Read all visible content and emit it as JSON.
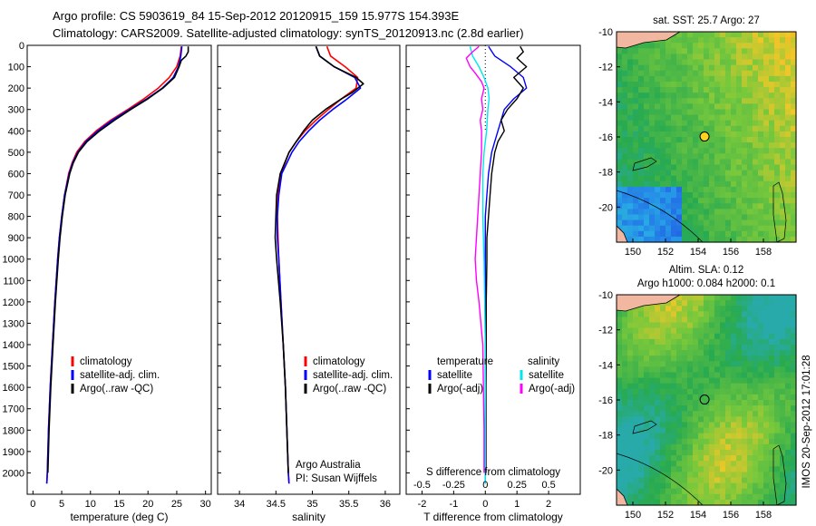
{
  "header": {
    "line1": "Argo profile: CS 5903619_84 15-Sep-2012 20120915_159 15.977S 154.393E",
    "line2": "Climatology: CARS2009. Satellite-adjusted climatology: synTS_20120913.nc (2.8d earlier)"
  },
  "colors": {
    "climatology": "#ff0000",
    "satellite": "#0000ff",
    "argo": "#000000",
    "sal_satellite": "#00e5ee",
    "sal_argo": "#ff00ff"
  },
  "chart_data": [
    {
      "id": "temperature",
      "type": "line",
      "xlabel": "temperature (deg C)",
      "ylabel": "",
      "xlim": [
        -1,
        31
      ],
      "ylim": [
        2100,
        0
      ],
      "xticks": [
        "0",
        "5",
        "10",
        "15",
        "20",
        "25",
        "30"
      ],
      "yticks": [
        "0",
        "100",
        "200",
        "300",
        "400",
        "500",
        "600",
        "700",
        "800",
        "900",
        "1000",
        "1100",
        "1200",
        "1300",
        "1400",
        "1500",
        "1600",
        "1700",
        "1800",
        "1900",
        "2000"
      ],
      "legend": {
        "position": "lower-center",
        "entries": [
          "climatology",
          "satellite-adj. clim.",
          "Argo(..raw -QC)"
        ]
      },
      "series": [
        {
          "name": "climatology",
          "depth": [
            5,
            50,
            100,
            150,
            200,
            250,
            300,
            350,
            400,
            450,
            500,
            550,
            600,
            700,
            800,
            900,
            1000,
            1200,
            1400,
            1600,
            1800,
            2000,
            2050
          ],
          "values": [
            25.8,
            25.6,
            25.0,
            23.7,
            21.8,
            19.3,
            16.5,
            13.5,
            11.0,
            9.0,
            7.6,
            6.8,
            6.2,
            5.5,
            5.0,
            4.6,
            4.3,
            3.8,
            3.4,
            3.0,
            2.7,
            2.5,
            2.4
          ]
        },
        {
          "name": "satellite-adj. clim.",
          "depth": [
            5,
            50,
            100,
            150,
            200,
            250,
            300,
            350,
            400,
            450,
            500,
            550,
            600,
            700,
            800,
            900,
            1000,
            1200,
            1400,
            1600,
            1800,
            2000,
            2050
          ],
          "values": [
            25.9,
            25.7,
            25.3,
            24.4,
            22.5,
            19.8,
            16.8,
            13.8,
            11.3,
            9.2,
            7.8,
            6.9,
            6.3,
            5.5,
            5.0,
            4.6,
            4.3,
            3.8,
            3.4,
            3.0,
            2.7,
            2.5,
            2.4
          ]
        },
        {
          "name": "Argo(..raw -QC)",
          "depth": [
            5,
            30,
            50,
            70,
            100,
            150,
            200,
            250,
            300,
            350,
            400,
            450,
            500,
            550,
            600,
            700,
            800,
            900,
            1000,
            1200,
            1400,
            1600,
            1800,
            2000
          ],
          "values": [
            27.0,
            27.0,
            26.6,
            25.8,
            25.4,
            24.6,
            22.6,
            20.0,
            17.0,
            14.2,
            11.6,
            9.4,
            7.9,
            7.0,
            6.4,
            5.6,
            5.1,
            4.7,
            4.4,
            3.9,
            3.5,
            3.1,
            2.8,
            2.6
          ]
        }
      ]
    },
    {
      "id": "salinity",
      "type": "line",
      "xlabel": "salinity",
      "ylabel": "",
      "xlim": [
        33.7,
        36.2
      ],
      "ylim": [
        2100,
        0
      ],
      "xticks": [
        "34",
        "34.5",
        "35",
        "35.5",
        "36"
      ],
      "legend": {
        "position": "lower-center",
        "entries": [
          "climatology",
          "satellite-adj. clim.",
          "Argo(..raw -QC)"
        ]
      },
      "annotation": [
        "Argo Australia",
        "PI: Susan Wijffels"
      ],
      "series": [
        {
          "name": "climatology",
          "depth": [
            5,
            50,
            100,
            150,
            200,
            250,
            300,
            350,
            400,
            450,
            500,
            600,
            700,
            800,
            900,
            1000,
            1200,
            1400,
            1600,
            1800,
            2000,
            2050
          ],
          "values": [
            35.2,
            35.25,
            35.45,
            35.62,
            35.6,
            35.4,
            35.22,
            35.05,
            34.9,
            34.78,
            34.68,
            34.57,
            34.53,
            34.52,
            34.53,
            34.54,
            34.57,
            34.6,
            34.63,
            34.65,
            34.67,
            34.68
          ]
        },
        {
          "name": "satellite-adj. clim.",
          "depth": [
            5,
            50,
            100,
            150,
            200,
            250,
            300,
            350,
            400,
            450,
            500,
            600,
            700,
            800,
            900,
            1000,
            1200,
            1400,
            1600,
            1800,
            2000,
            2050
          ],
          "values": [
            35.05,
            35.1,
            35.3,
            35.58,
            35.66,
            35.48,
            35.28,
            35.1,
            34.95,
            34.82,
            34.72,
            34.58,
            34.54,
            34.52,
            34.52,
            34.54,
            34.57,
            34.6,
            34.63,
            34.65,
            34.67,
            34.68
          ]
        },
        {
          "name": "Argo(..raw -QC)",
          "depth": [
            5,
            50,
            100,
            150,
            180,
            220,
            250,
            300,
            350,
            400,
            450,
            500,
            600,
            700,
            800,
            900,
            1000,
            1200,
            1400,
            1600,
            1800,
            2000
          ],
          "values": [
            35.05,
            35.1,
            35.3,
            35.6,
            35.7,
            35.55,
            35.4,
            35.18,
            35.0,
            34.88,
            34.78,
            34.68,
            34.56,
            34.51,
            34.5,
            34.49,
            34.51,
            34.56,
            34.6,
            34.63,
            34.65,
            34.67
          ]
        }
      ]
    },
    {
      "id": "difference",
      "type": "line",
      "xlabel": "T difference from climatology",
      "xlabel_top": "S difference from climatology",
      "xlim": [
        -2.5,
        3
      ],
      "ylim": [
        2100,
        0
      ],
      "xticks": [
        "-2",
        "-1",
        "0",
        "1",
        "2"
      ],
      "xticks_top": [
        "-0.5",
        "-0.25",
        "0",
        "0.25",
        "0.5"
      ],
      "legend_left": {
        "title": "temperature",
        "entries": [
          "satellite",
          "Argo(-adj)"
        ]
      },
      "legend_right": {
        "title": "salinity",
        "entries": [
          "satellite",
          "Argo(-adj)"
        ]
      },
      "series": [
        {
          "name": "temperature satellite",
          "depth": [
            5,
            50,
            100,
            150,
            200,
            250,
            300,
            350,
            400,
            450,
            500,
            600,
            700,
            800,
            1000,
            1400,
            1800,
            2050
          ],
          "values": [
            0.1,
            0.3,
            0.8,
            1.2,
            1.3,
            0.9,
            0.6,
            0.5,
            0.4,
            0.3,
            0.2,
            0.1,
            0.05,
            0.0,
            0.0,
            0.0,
            0.0,
            0.0
          ]
        },
        {
          "name": "temperature Argo(-adj)",
          "depth": [
            5,
            30,
            60,
            100,
            150,
            200,
            250,
            300,
            350,
            400,
            450,
            500,
            550,
            600,
            700,
            800,
            900,
            1000,
            1200,
            1400,
            1600,
            2000
          ],
          "values": [
            1.1,
            1.2,
            1.0,
            1.3,
            0.9,
            1.2,
            1.0,
            0.7,
            0.5,
            0.6,
            0.4,
            0.3,
            0.25,
            0.2,
            0.15,
            0.1,
            0.05,
            0.05,
            0.03,
            0.03,
            0.02,
            0.02
          ]
        },
        {
          "name": "salinity satellite",
          "depth": [
            5,
            50,
            100,
            150,
            200,
            250,
            300,
            400,
            500,
            600,
            700,
            800,
            1000,
            1400,
            1800,
            2050
          ],
          "values": [
            -0.12,
            -0.1,
            -0.05,
            -0.01,
            0.02,
            0.03,
            0.02,
            0.01,
            -0.01,
            -0.02,
            -0.02,
            -0.02,
            -0.01,
            0.0,
            0.0,
            0.0
          ]
        },
        {
          "name": "salinity Argo(-adj)",
          "depth": [
            5,
            30,
            60,
            100,
            130,
            170,
            200,
            250,
            300,
            350,
            400,
            500,
            600,
            700,
            800,
            900,
            1000,
            1100,
            1200,
            1400,
            1800,
            2000
          ],
          "values": [
            -0.05,
            -0.1,
            -0.15,
            -0.12,
            -0.08,
            -0.03,
            -0.01,
            -0.03,
            -0.02,
            -0.04,
            -0.03,
            -0.03,
            -0.04,
            -0.05,
            -0.06,
            -0.07,
            -0.08,
            -0.07,
            -0.05,
            -0.02,
            -0.01,
            -0.01
          ]
        }
      ]
    },
    {
      "id": "sst_map",
      "type": "heatmap",
      "title": "sat. SST: 25.7  Argo: 27",
      "xlim": [
        149,
        160
      ],
      "ylim": [
        -22,
        -10
      ],
      "xticks": [
        "150",
        "152",
        "154",
        "156",
        "158"
      ],
      "yticks": [
        "-10",
        "-12",
        "-14",
        "-16",
        "-18",
        "-20"
      ],
      "marker": {
        "lon": 154.393,
        "lat": -15.977
      },
      "regions": [
        "warm east (orange)",
        "cool south-west (blue)"
      ]
    },
    {
      "id": "sla_map",
      "type": "heatmap",
      "title": "Altim. SLA: 0.12",
      "subtitle": "Argo h1000: 0.084 h2000: 0.1",
      "xlim": [
        149,
        160
      ],
      "ylim": [
        -22,
        -10
      ],
      "xticks": [
        "150",
        "152",
        "154",
        "156",
        "158"
      ],
      "yticks": [
        "-10",
        "-12",
        "-14",
        "-16",
        "-18",
        "-20"
      ],
      "marker": {
        "lon": 154.393,
        "lat": -15.977
      }
    }
  ],
  "side_stamp": "IMOS 20-Sep-2012 17:01:28"
}
